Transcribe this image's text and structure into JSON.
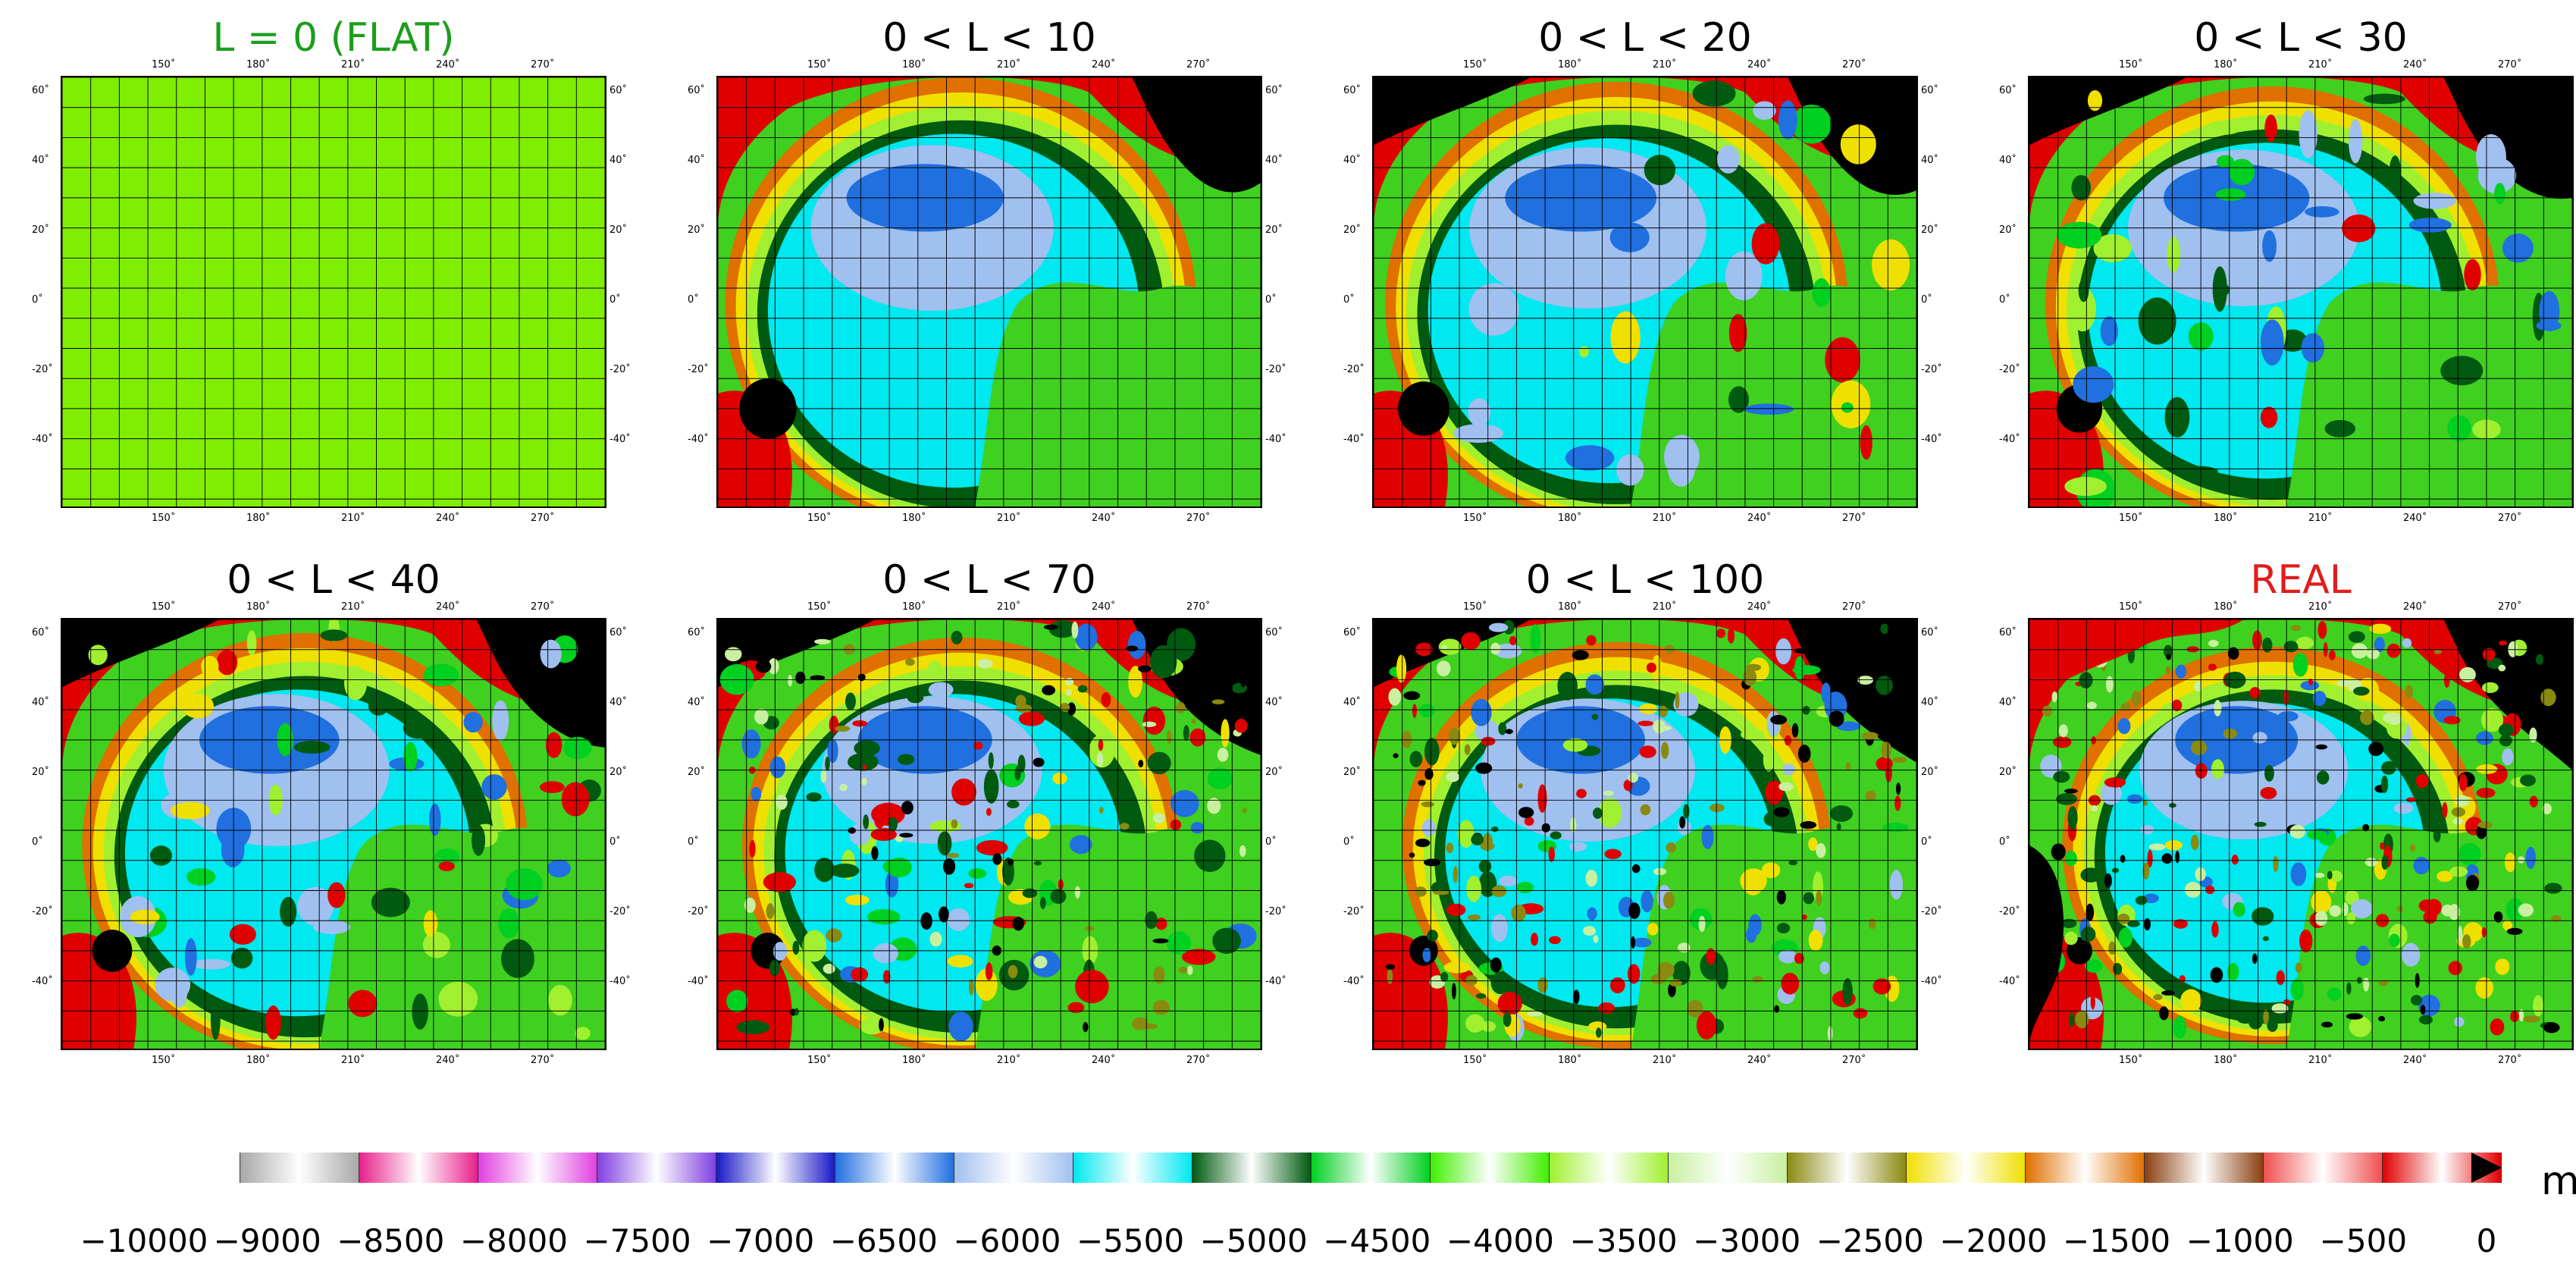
{
  "panels": [
    {
      "title": "L = 0 (FLAT)",
      "style": "flat",
      "title_color": "green"
    },
    {
      "title": "0 < L < 10",
      "style": "l10",
      "title_color": "black"
    },
    {
      "title": "0 < L < 20",
      "style": "l20",
      "title_color": "black"
    },
    {
      "title": "0 < L < 30",
      "style": "l30",
      "title_color": "black"
    },
    {
      "title": "0 < L < 40",
      "style": "l40",
      "title_color": "black"
    },
    {
      "title": "0 < L < 70",
      "style": "l70",
      "title_color": "black"
    },
    {
      "title": "0 < L < 100",
      "style": "l100",
      "title_color": "black"
    },
    {
      "title": "REAL",
      "style": "real",
      "title_color": "red"
    }
  ],
  "lon_ticks": [
    "150˚",
    "180˚",
    "210˚",
    "240˚",
    "270˚"
  ],
  "lat_ticks": [
    "60˚",
    "40˚",
    "20˚",
    "0˚",
    "-20˚",
    "-40˚"
  ],
  "colorbar": {
    "unit": "m",
    "labels": [
      "−10000",
      "−9000",
      "−8500",
      "−8000",
      "−7500",
      "−7000",
      "−6500",
      "−6000",
      "−5500",
      "−5000",
      "−4500",
      "−4000",
      "−3500",
      "−3000",
      "−2500",
      "−2000",
      "−1500",
      "−1000",
      "−500",
      "0"
    ],
    "colors": [
      "#ffffff",
      "#a8a8a8",
      "#e8208a",
      "#e040e0",
      "#8040e0",
      "#1818c8",
      "#2070e0",
      "#a0c0f0",
      "#00e8f0",
      "#005a10",
      "#00d020",
      "#40f000",
      "#a0f030",
      "#c8f0a0",
      "#8a8a10",
      "#f0e000",
      "#e07000",
      "#8a4010",
      "#f05050",
      "#e00000"
    ],
    "midpoint_color": "#ffffff"
  }
}
